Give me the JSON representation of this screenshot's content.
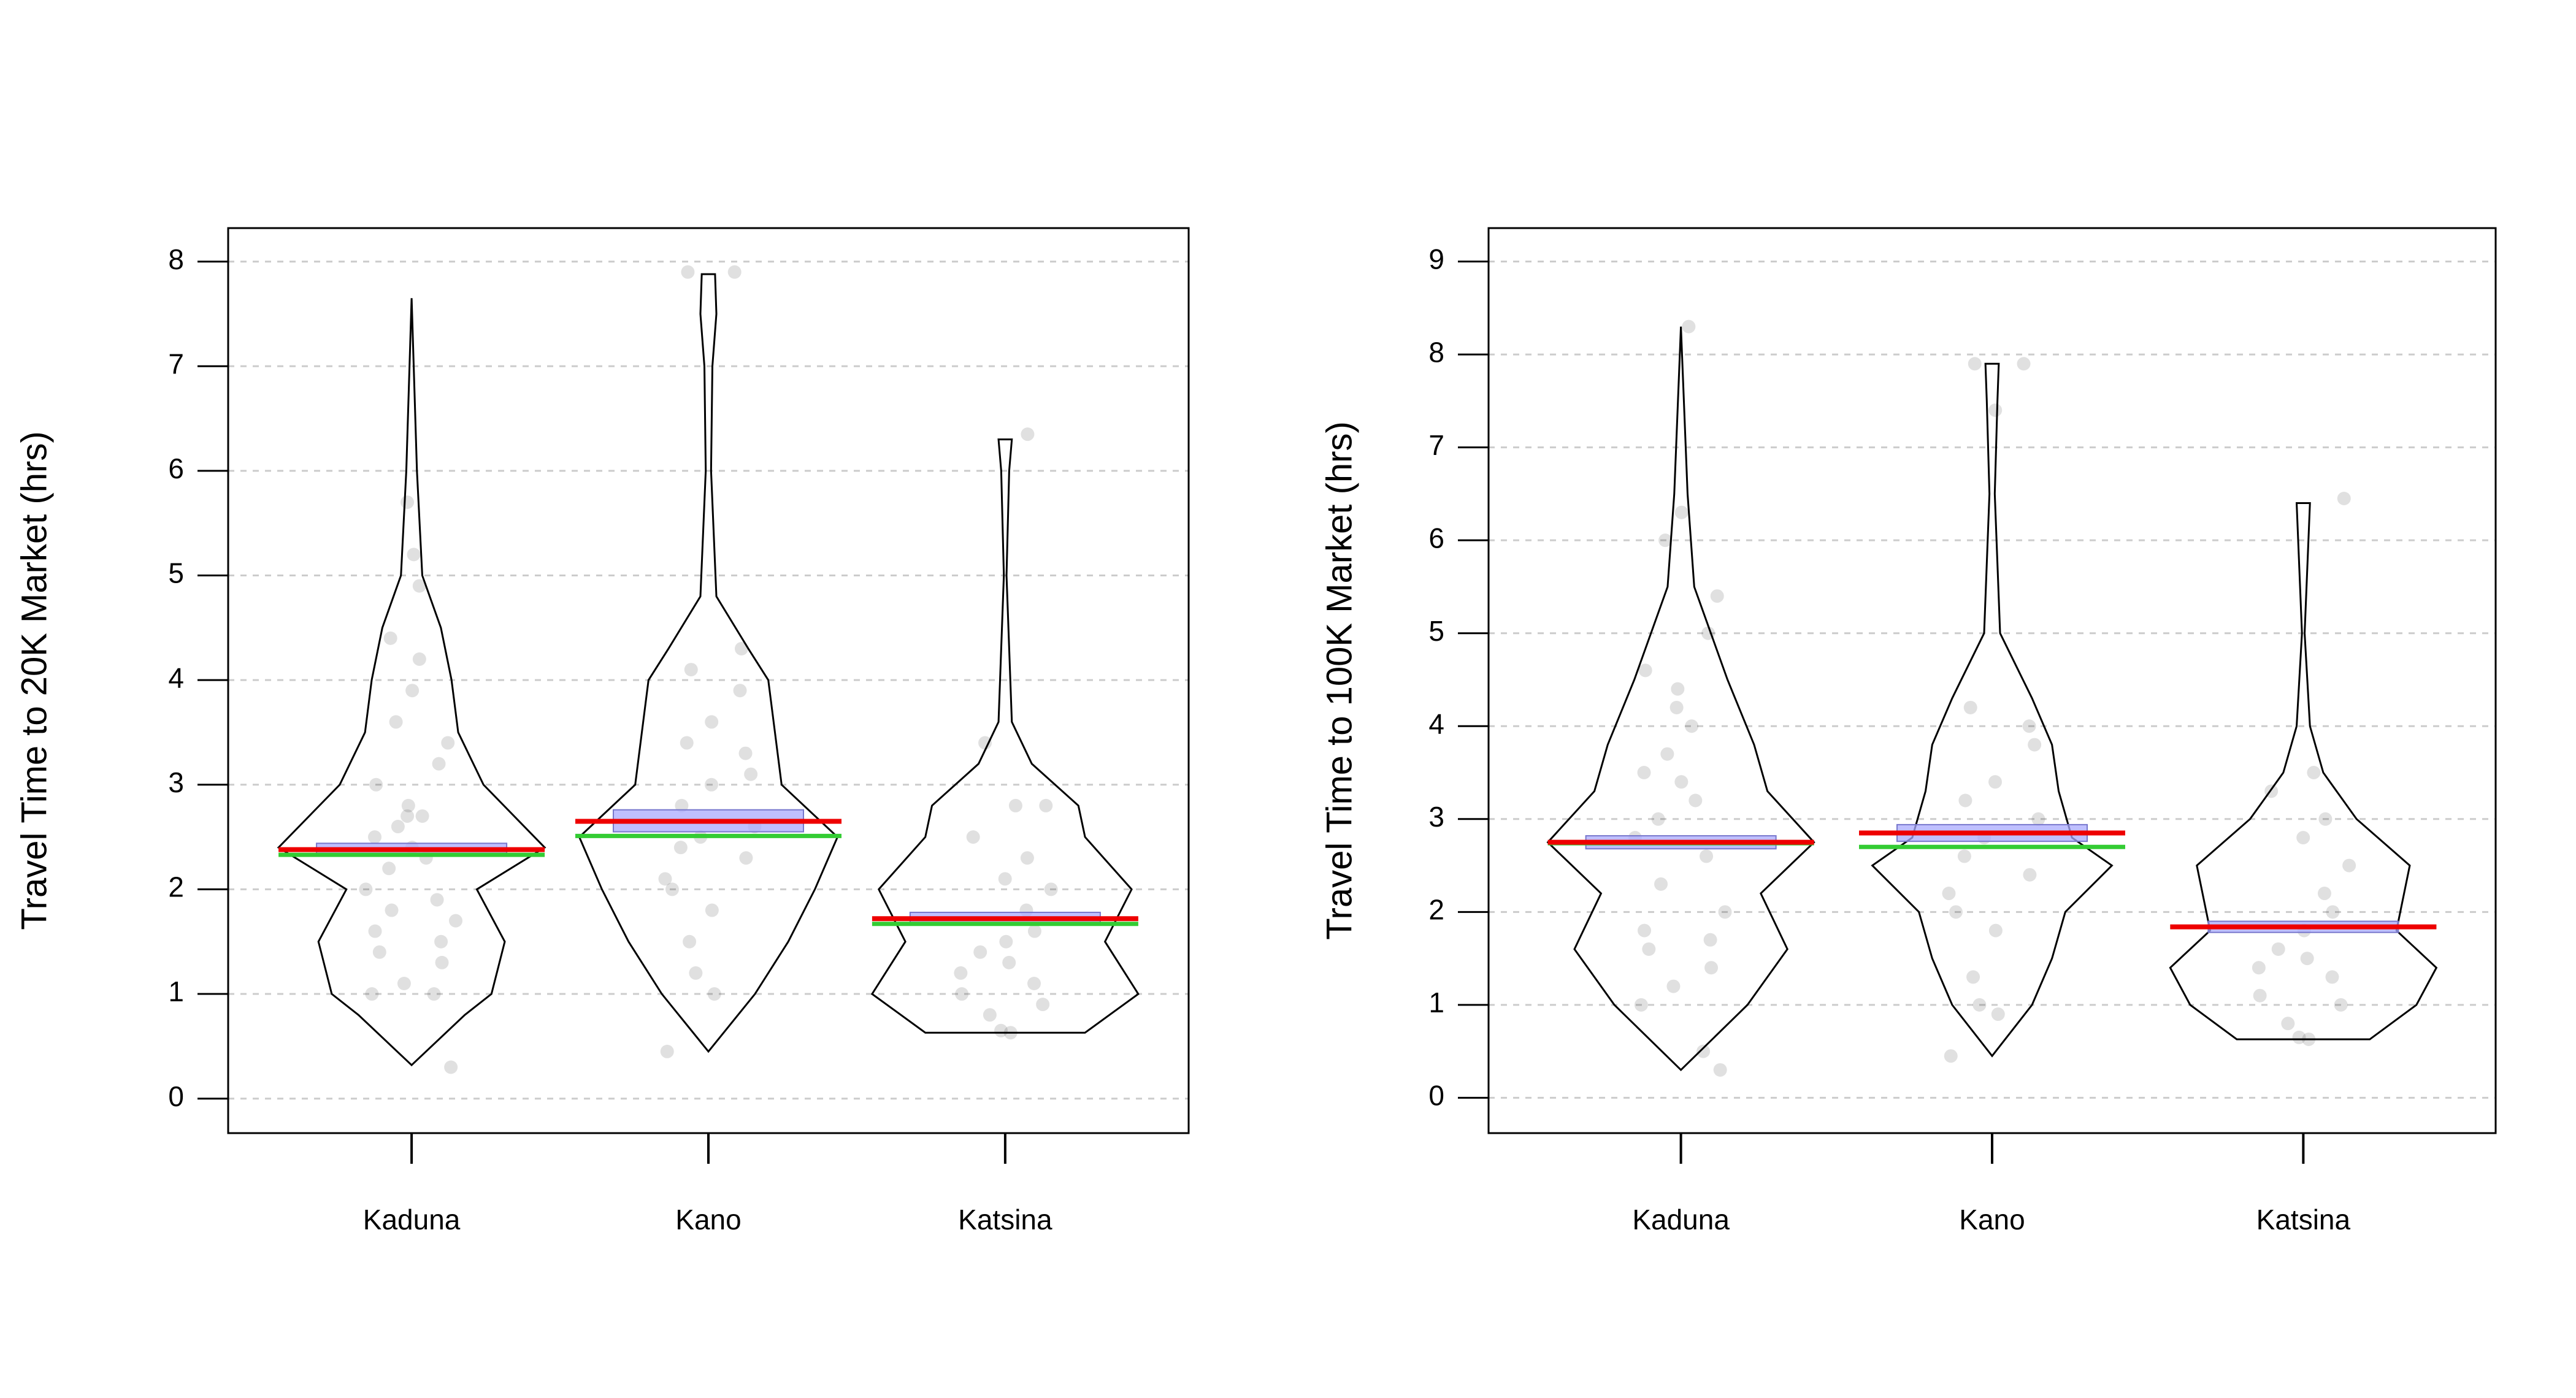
{
  "chart_data": [
    {
      "type": "pirate",
      "ylabel": "Travel Time to 20K Market (hrs)",
      "categories": [
        "Kaduna",
        "Kano",
        "Katsina"
      ],
      "ylim": [
        -0.33,
        8.32
      ],
      "yticks": [
        0,
        1,
        2,
        3,
        4,
        5,
        6,
        7,
        8
      ],
      "grid": true,
      "mean_color": "#ee0000",
      "median_color": "#33cc33",
      "ci_color": "#aaaaff",
      "point_color": "#000000",
      "groups": [
        {
          "mean": 2.38,
          "median": 2.33,
          "ci": [
            2.33,
            2.44
          ],
          "violin_y": [
            0.32,
            0.8,
            1.0,
            1.5,
            2.0,
            2.4,
            3.0,
            3.5,
            4.0,
            4.5,
            5.0,
            6.0,
            7.65
          ],
          "violin_width": [
            0,
            0.4,
            0.6,
            0.7,
            0.49,
            1.0,
            0.54,
            0.35,
            0.3,
            0.22,
            0.08,
            0.04,
            0
          ],
          "points": [
            0.3,
            1.0,
            1.0,
            1.1,
            1.3,
            1.4,
            1.5,
            1.6,
            1.7,
            1.8,
            1.9,
            2.0,
            2.2,
            2.3,
            2.4,
            2.5,
            2.6,
            2.7,
            2.7,
            2.8,
            3.0,
            3.2,
            3.4,
            3.6,
            3.9,
            4.2,
            4.4,
            4.9,
            5.2,
            5.7
          ]
        },
        {
          "mean": 2.65,
          "median": 2.51,
          "ci": [
            2.55,
            2.76
          ],
          "violin_y": [
            0.45,
            1.0,
            1.5,
            2.0,
            2.5,
            3.0,
            3.5,
            4.0,
            4.3,
            4.8,
            6.0,
            7.0,
            7.5,
            7.88
          ],
          "violin_width": [
            0,
            0.35,
            0.6,
            0.8,
            0.97,
            0.55,
            0.5,
            0.45,
            0.3,
            0.06,
            0.02,
            0.03,
            0.06,
            0.05
          ],
          "points": [
            0.45,
            1.0,
            1.2,
            1.5,
            1.8,
            2.0,
            2.1,
            2.3,
            2.4,
            2.5,
            2.6,
            2.8,
            3.0,
            3.1,
            3.3,
            3.4,
            3.6,
            3.9,
            4.1,
            4.3,
            7.9,
            7.9
          ]
        },
        {
          "mean": 1.72,
          "median": 1.67,
          "ci": [
            1.66,
            1.78
          ],
          "violin_y": [
            0.63,
            1.0,
            1.5,
            2.0,
            2.5,
            2.8,
            3.2,
            3.6,
            5.0,
            6.0,
            6.3
          ],
          "violin_width": [
            0.6,
            1.0,
            0.75,
            0.95,
            0.6,
            0.55,
            0.2,
            0.05,
            0.01,
            0.03,
            0.05
          ],
          "points": [
            0.63,
            0.65,
            0.8,
            0.9,
            1.0,
            1.1,
            1.2,
            1.3,
            1.4,
            1.5,
            1.6,
            1.8,
            2.0,
            2.1,
            2.3,
            2.5,
            2.8,
            2.8,
            3.4,
            6.35
          ]
        }
      ]
    },
    {
      "type": "pirate",
      "ylabel": "Travel Time to 100K Market (hrs)",
      "categories": [
        "Kaduna",
        "Kano",
        "Katsina"
      ],
      "ylim": [
        -0.38,
        9.36
      ],
      "yticks": [
        0,
        1,
        2,
        3,
        4,
        5,
        6,
        7,
        8,
        9
      ],
      "grid": true,
      "mean_color": "#ee0000",
      "median_color": "#33cc33",
      "ci_color": "#aaaaff",
      "point_color": "#000000",
      "groups": [
        {
          "mean": 2.75,
          "median": 2.74,
          "ci": [
            2.68,
            2.82
          ],
          "violin_y": [
            0.3,
            1.0,
            1.6,
            2.2,
            2.75,
            3.3,
            3.8,
            4.5,
            5.5,
            6.5,
            8.3
          ],
          "violin_width": [
            0,
            0.5,
            0.8,
            0.6,
            1.0,
            0.65,
            0.55,
            0.35,
            0.1,
            0.05,
            0
          ],
          "points": [
            0.3,
            0.5,
            1.0,
            1.2,
            1.4,
            1.6,
            1.7,
            1.8,
            2.0,
            2.3,
            2.6,
            2.8,
            3.0,
            3.2,
            3.4,
            3.5,
            3.7,
            4.0,
            4.2,
            4.4,
            4.6,
            5.0,
            5.4,
            6.0,
            6.3,
            8.3
          ]
        },
        {
          "mean": 2.85,
          "median": 2.7,
          "ci": [
            2.76,
            2.94
          ],
          "violin_y": [
            0.45,
            1.0,
            1.5,
            2.0,
            2.5,
            2.8,
            3.3,
            3.8,
            4.3,
            5.0,
            6.5,
            7.5,
            7.9
          ],
          "violin_width": [
            0,
            0.3,
            0.45,
            0.55,
            0.9,
            0.6,
            0.5,
            0.45,
            0.3,
            0.06,
            0.02,
            0.04,
            0.05
          ],
          "points": [
            0.45,
            0.9,
            1.0,
            1.3,
            1.8,
            2.0,
            2.2,
            2.4,
            2.6,
            2.8,
            3.0,
            3.2,
            3.4,
            3.8,
            4.0,
            4.2,
            7.4,
            7.9,
            7.9
          ]
        },
        {
          "mean": 1.84,
          "median": 1.84,
          "ci": [
            1.78,
            1.9
          ],
          "violin_y": [
            0.63,
            1.0,
            1.4,
            1.8,
            2.5,
            3.0,
            3.5,
            4.0,
            5.0,
            6.4
          ],
          "violin_width": [
            0.5,
            0.85,
            1.0,
            0.7,
            0.8,
            0.4,
            0.15,
            0.05,
            0.01,
            0.05
          ],
          "points": [
            0.63,
            0.65,
            0.8,
            1.0,
            1.1,
            1.3,
            1.4,
            1.5,
            1.6,
            1.8,
            2.0,
            2.2,
            2.5,
            2.8,
            3.0,
            3.3,
            3.5,
            6.45
          ]
        }
      ]
    }
  ]
}
